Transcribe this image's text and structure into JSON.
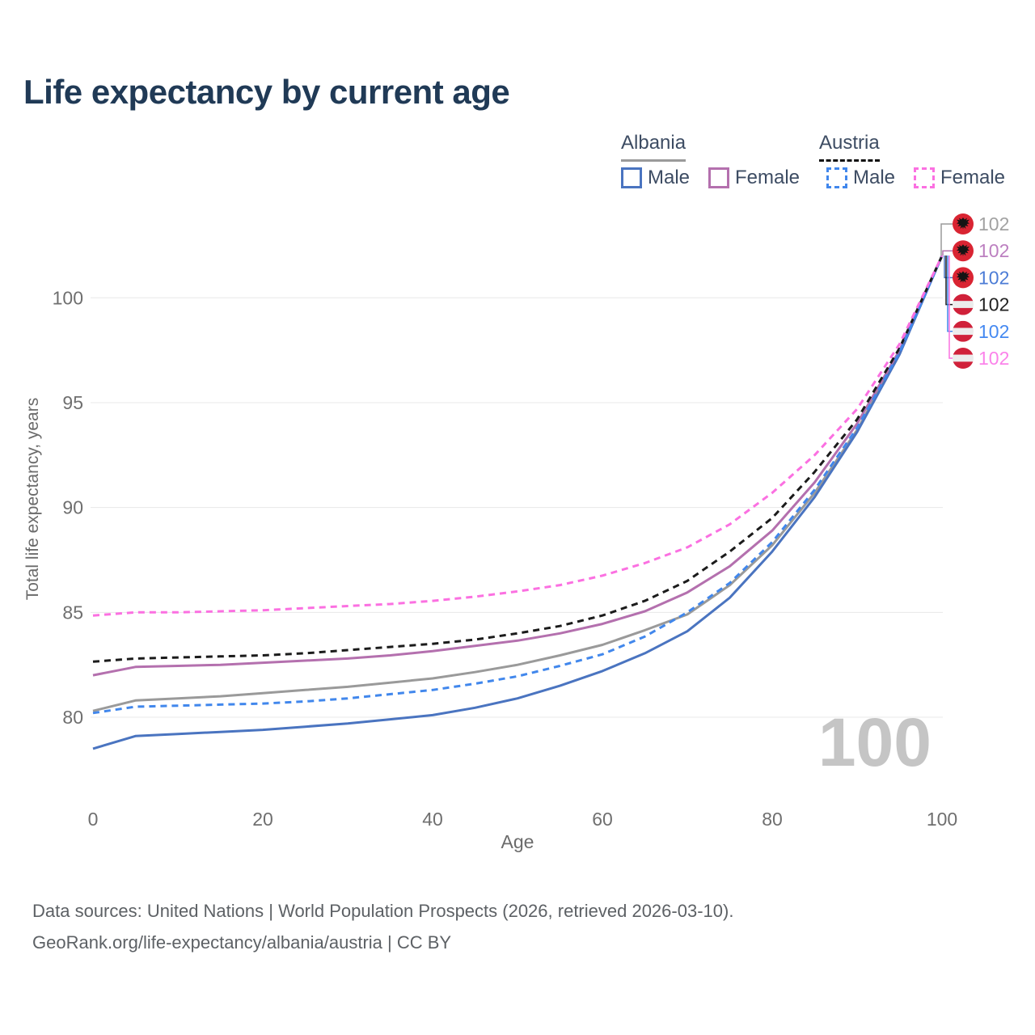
{
  "header": {
    "title": "Life expectancy by current age"
  },
  "legend": {
    "groups": [
      {
        "label": "Albania",
        "line_style": "solid",
        "line_color": "#9a9a9a"
      },
      {
        "label": "Austria",
        "line_style": "dashed",
        "line_color": "#111111"
      }
    ],
    "items": [
      {
        "country": "Albania",
        "label": "Male",
        "swatch_color": "#4a74c0",
        "style": "solid"
      },
      {
        "country": "Albania",
        "label": "Female",
        "swatch_color": "#b470ae",
        "style": "solid"
      },
      {
        "country": "Austria",
        "label": "Male",
        "swatch_color": "#4187ec",
        "style": "dashed"
      },
      {
        "country": "Austria",
        "label": "Female",
        "swatch_color": "#fb70e1",
        "style": "dashed"
      }
    ]
  },
  "chart_data": {
    "type": "line",
    "title": "Life expectancy by current age",
    "xlabel": "Age",
    "ylabel": "Total life expectancy, years",
    "x_ticks": [
      0,
      20,
      40,
      60,
      80,
      100
    ],
    "y_ticks": [
      80,
      85,
      90,
      95,
      100
    ],
    "xlim": [
      0,
      100
    ],
    "ylim": [
      77,
      103
    ],
    "grid": "horizontal-only",
    "legend_position": "top-right",
    "x": [
      0,
      5,
      10,
      15,
      20,
      25,
      30,
      35,
      40,
      45,
      50,
      55,
      60,
      65,
      70,
      75,
      80,
      85,
      90,
      95,
      100
    ],
    "series": [
      {
        "id": "albania-both",
        "name": "Albania Both sexes",
        "country": "Albania",
        "sex": "Both",
        "color": "#9a9a9a",
        "dashed": false,
        "row": 0,
        "flag": "albania",
        "end_label": "102",
        "label_color": "#a2a2a2",
        "values": [
          80.3,
          80.8,
          80.9,
          81.0,
          81.15,
          81.3,
          81.45,
          81.65,
          81.85,
          82.15,
          82.5,
          82.95,
          83.45,
          84.15,
          84.9,
          86.3,
          88.2,
          90.7,
          93.7,
          97.4,
          102
        ]
      },
      {
        "id": "albania-female",
        "name": "Albania Female",
        "country": "Albania",
        "sex": "Female",
        "color": "#b470ae",
        "dashed": false,
        "row": 1,
        "flag": "albania",
        "end_label": "102",
        "label_color": "#bc7fc0",
        "values": [
          82.0,
          82.4,
          82.45,
          82.5,
          82.6,
          82.7,
          82.8,
          82.95,
          83.15,
          83.4,
          83.65,
          84.0,
          84.45,
          85.05,
          85.95,
          87.2,
          88.9,
          91.2,
          94.0,
          97.5,
          102
        ]
      },
      {
        "id": "albania-male",
        "name": "Albania Male",
        "country": "Albania",
        "sex": "Male",
        "color": "#4a74c0",
        "dashed": false,
        "row": 2,
        "flag": "albania",
        "end_label": "102",
        "label_color": "#4c7cd6",
        "values": [
          78.5,
          79.1,
          79.2,
          79.3,
          79.4,
          79.55,
          79.7,
          79.9,
          80.1,
          80.45,
          80.9,
          81.5,
          82.2,
          83.05,
          84.1,
          85.7,
          87.9,
          90.5,
          93.6,
          97.3,
          102
        ]
      },
      {
        "id": "austria-both",
        "name": "Austria Both sexes",
        "country": "Austria",
        "sex": "Both",
        "color": "#1b1b1b",
        "dashed": true,
        "row": 3,
        "flag": "austria",
        "end_label": "102",
        "label_color": "#212121",
        "values": [
          82.65,
          82.8,
          82.85,
          82.9,
          82.95,
          83.05,
          83.2,
          83.35,
          83.5,
          83.7,
          84.0,
          84.35,
          84.85,
          85.55,
          86.5,
          87.9,
          89.5,
          91.7,
          94.2,
          97.6,
          102
        ]
      },
      {
        "id": "austria-male",
        "name": "Austria Male",
        "country": "Austria",
        "sex": "Male",
        "color": "#4187ec",
        "dashed": true,
        "row": 4,
        "flag": "austria",
        "end_label": "102",
        "label_color": "#4589f1",
        "values": [
          80.2,
          80.5,
          80.55,
          80.6,
          80.65,
          80.75,
          80.9,
          81.1,
          81.3,
          81.6,
          81.95,
          82.45,
          83.0,
          83.85,
          85.0,
          86.4,
          88.35,
          90.85,
          93.8,
          97.4,
          102
        ]
      },
      {
        "id": "austria-female",
        "name": "Austria Female",
        "country": "Austria",
        "sex": "Female",
        "color": "#fb70e1",
        "dashed": true,
        "row": 5,
        "flag": "austria",
        "end_label": "102",
        "label_color": "#fb83ea",
        "values": [
          84.85,
          85.0,
          85.0,
          85.05,
          85.1,
          85.2,
          85.3,
          85.4,
          85.55,
          85.75,
          86.0,
          86.3,
          86.75,
          87.35,
          88.1,
          89.2,
          90.7,
          92.5,
          94.7,
          97.8,
          102
        ]
      }
    ]
  },
  "watermark": "100",
  "footer": {
    "line1": "Data sources: United Nations | World Population Prospects (2026, retrieved 2026-03-10).",
    "line2": "GeoRank.org/life-expectancy/albania/austria | CC BY"
  }
}
